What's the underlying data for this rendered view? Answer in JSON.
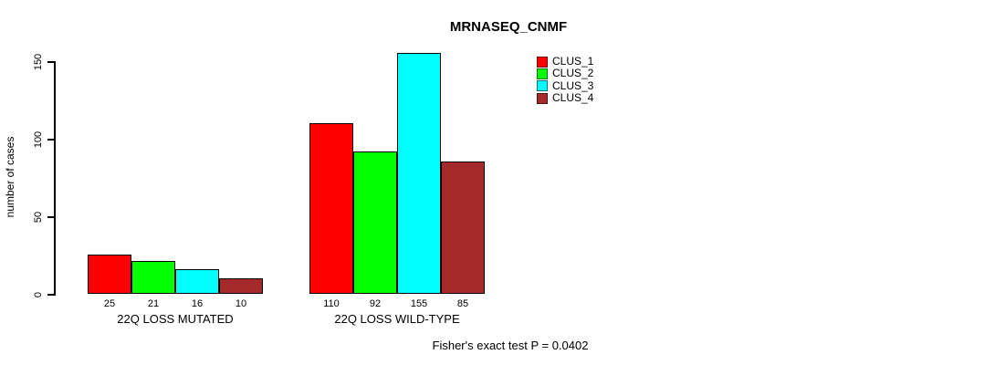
{
  "chart_data": {
    "type": "bar",
    "title": "MRNASEQ_CNMF",
    "ylabel": "number of cases",
    "xlabel": "",
    "ylim": [
      0,
      150
    ],
    "yticks": [
      0,
      50,
      100,
      150
    ],
    "grid": false,
    "legend_position": "top-right",
    "categories": [
      "22Q LOSS MUTATED",
      "22Q LOSS WILD-TYPE"
    ],
    "series": [
      {
        "name": "CLUS_1",
        "color": "#ff0000",
        "values": [
          25,
          110
        ]
      },
      {
        "name": "CLUS_2",
        "color": "#00ff00",
        "values": [
          21,
          92
        ]
      },
      {
        "name": "CLUS_3",
        "color": "#00ffff",
        "values": [
          16,
          155
        ]
      },
      {
        "name": "CLUS_4",
        "color": "#a52a2a",
        "values": [
          10,
          85
        ]
      }
    ],
    "bar_value_labels": [
      [
        25,
        21,
        16,
        10
      ],
      [
        110,
        92,
        155,
        85
      ]
    ],
    "annotation": "Fisher's exact test P = 0.0402"
  }
}
